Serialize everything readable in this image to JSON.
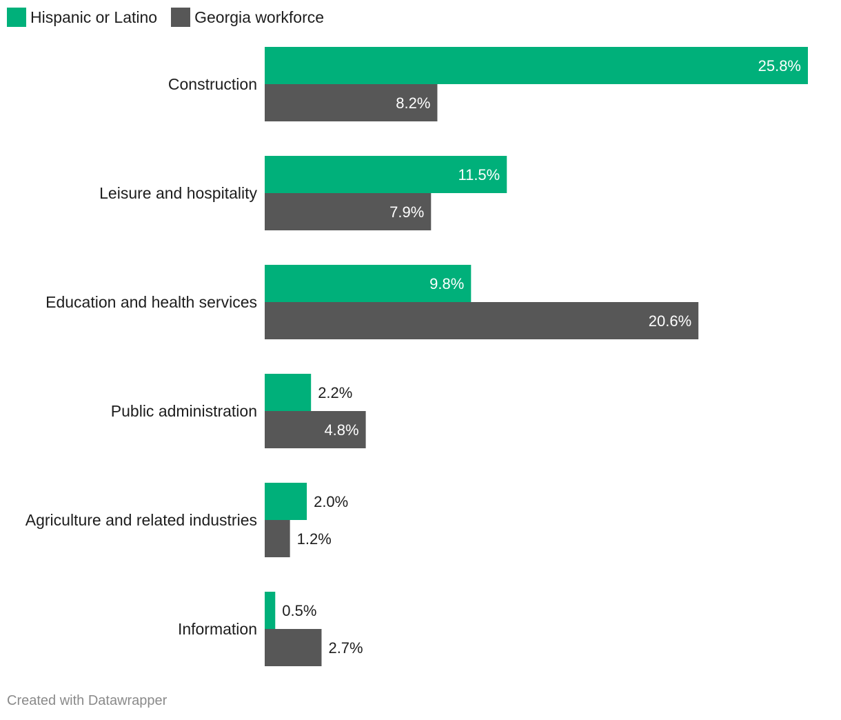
{
  "legend": {
    "items": [
      {
        "label": "Hispanic or Latino",
        "color": "#00b07a"
      },
      {
        "label": "Georgia workforce",
        "color": "#575757"
      }
    ]
  },
  "footer": {
    "credit": "Created with Datawrapper"
  },
  "chart_data": {
    "type": "bar",
    "orientation": "horizontal",
    "categories": [
      "Construction",
      "Leisure and hospitality",
      "Education and health services",
      "Public administration",
      "Agriculture and related industries",
      "Information"
    ],
    "series": [
      {
        "name": "Hispanic or Latino",
        "color": "#00b07a",
        "values": [
          25.8,
          11.5,
          9.8,
          2.2,
          2.0,
          0.5
        ],
        "labels": [
          "25.8%",
          "11.5%",
          "9.8%",
          "2.2%",
          "2.0%",
          "0.5%"
        ]
      },
      {
        "name": "Georgia workforce",
        "color": "#575757",
        "values": [
          8.2,
          7.9,
          20.6,
          4.8,
          1.2,
          2.7
        ],
        "labels": [
          "8.2%",
          "7.9%",
          "20.6%",
          "4.8%",
          "1.2%",
          "2.7%"
        ]
      }
    ],
    "xlim": [
      0,
      25.8
    ],
    "grid": false,
    "legend_position": "top-left"
  }
}
